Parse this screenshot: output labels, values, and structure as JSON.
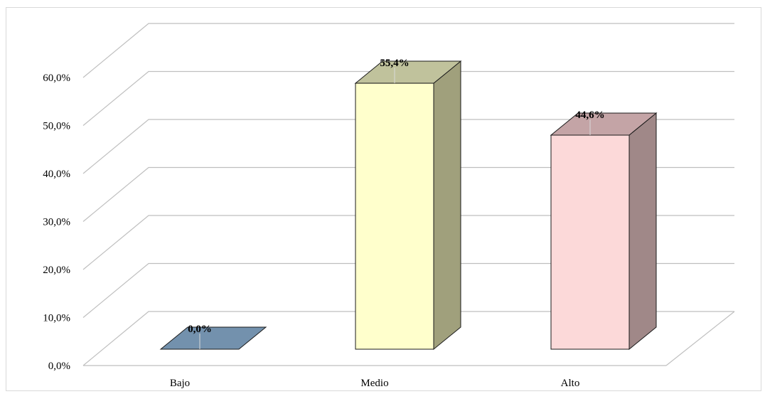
{
  "chart_data": {
    "type": "bar",
    "style": "3d-column",
    "categories": [
      "Bajo",
      "Medio",
      "Alto"
    ],
    "values": [
      0.0,
      55.4,
      44.6
    ],
    "data_labels": [
      "0,0%",
      "55,4%",
      "44,6%"
    ],
    "y_ticks": [
      "0,0%",
      "10,0%",
      "20,0%",
      "30,0%",
      "40,0%",
      "50,0%",
      "60,0%"
    ],
    "ylim": [
      0,
      70
    ],
    "grid": true,
    "legend": "none",
    "colors": [
      {
        "front": "#7391ad",
        "top": "#7391ad",
        "side": "#5b7590"
      },
      {
        "front": "#ffffcc",
        "top": "#c0c29c",
        "side": "#a0a07c"
      },
      {
        "front": "#fcd9d9",
        "top": "#c4a4a6",
        "side": "#a08888"
      }
    ],
    "gridline_color": "#bfbfbf"
  }
}
